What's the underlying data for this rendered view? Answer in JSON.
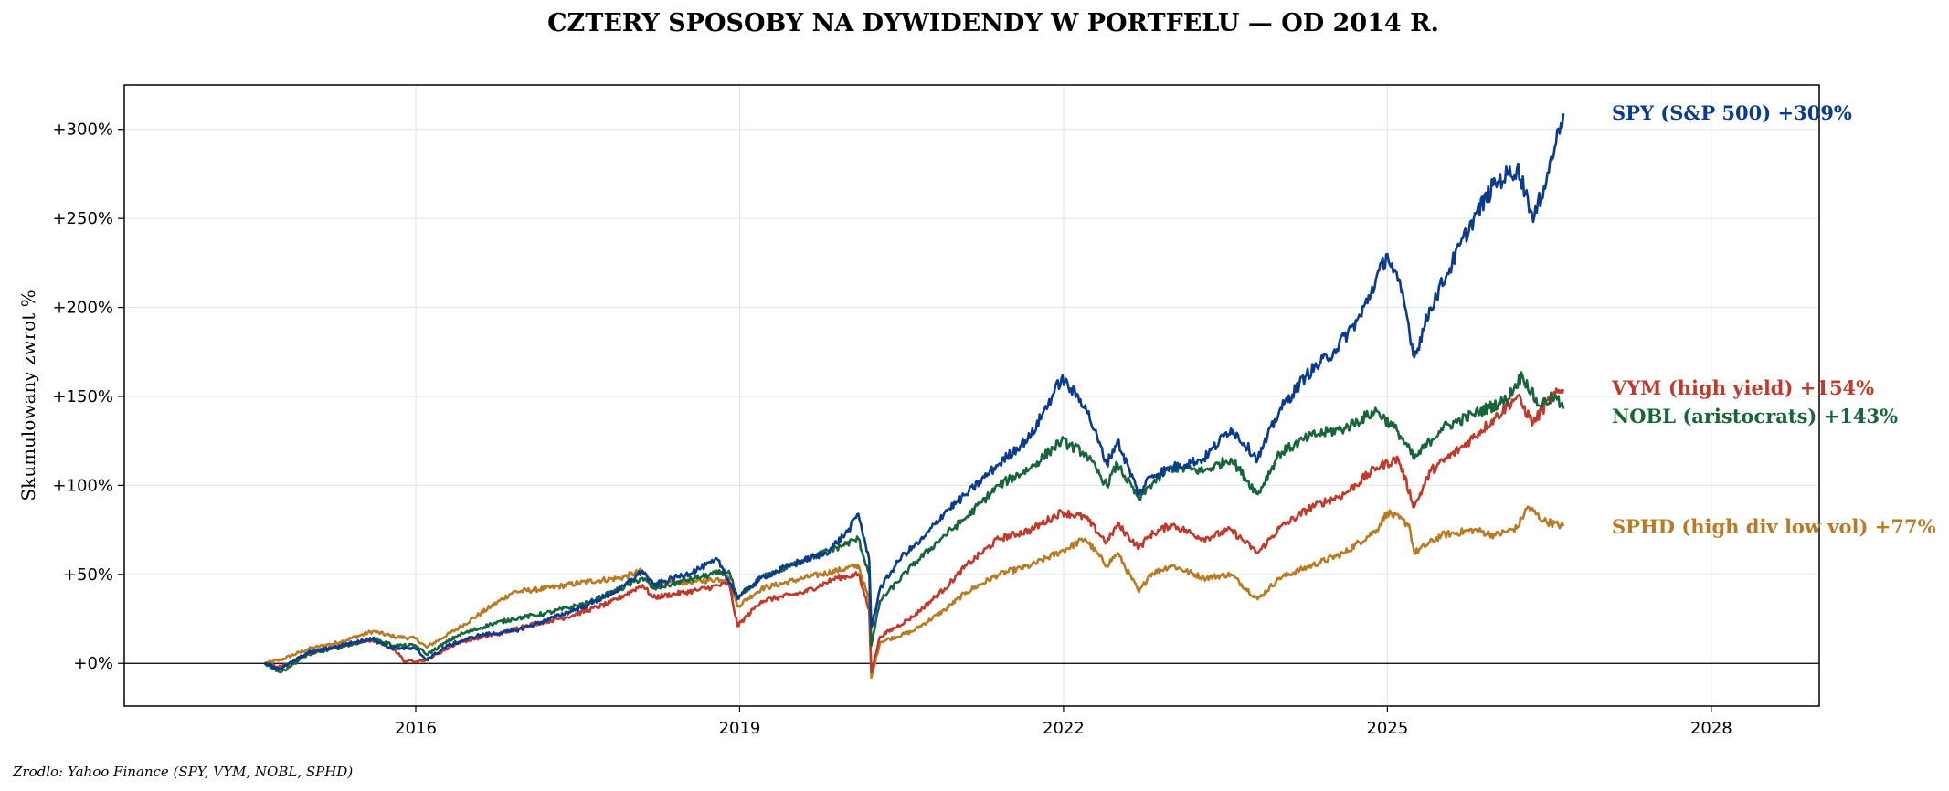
{
  "chart_data": {
    "type": "line",
    "title": "CZTERY SPOSOBY NA DYWIDENDY W PORTFELU — OD 2014 R.",
    "ylabel": "Skumulowany zwrot %",
    "xlabel": "",
    "xlim": [
      2013.3,
      2029.0
    ],
    "ylim": [
      -24,
      325
    ],
    "x_ticks": [
      2016,
      2019,
      2022,
      2025,
      2028
    ],
    "y_ticks": [
      0,
      50,
      100,
      150,
      200,
      250,
      300
    ],
    "y_tick_labels": [
      "+0%",
      "+50%",
      "+100%",
      "+150%",
      "+200%",
      "+250%",
      "+300%"
    ],
    "grid": true,
    "zero_line": true,
    "source_note": "Zrodlo: Yahoo Finance (SPY, VYM, NOBL, SPHD)",
    "series": [
      {
        "name": "SPY (S&P 500)",
        "label": "SPY (S&P 500)  +309%",
        "color": "#0b3b8f",
        "points": [
          [
            2014.6,
            0
          ],
          [
            2014.75,
            -3
          ],
          [
            2015.0,
            6
          ],
          [
            2015.3,
            10
          ],
          [
            2015.6,
            14
          ],
          [
            2015.75,
            9
          ],
          [
            2016.0,
            8
          ],
          [
            2016.1,
            2
          ],
          [
            2016.3,
            10
          ],
          [
            2016.6,
            16
          ],
          [
            2016.9,
            18
          ],
          [
            2017.2,
            24
          ],
          [
            2017.6,
            33
          ],
          [
            2017.9,
            42
          ],
          [
            2018.1,
            52
          ],
          [
            2018.2,
            44
          ],
          [
            2018.5,
            50
          ],
          [
            2018.8,
            58
          ],
          [
            2018.98,
            37
          ],
          [
            2019.2,
            48
          ],
          [
            2019.5,
            56
          ],
          [
            2019.8,
            62
          ],
          [
            2020.0,
            74
          ],
          [
            2020.1,
            84
          ],
          [
            2020.2,
            58
          ],
          [
            2020.22,
            20
          ],
          [
            2020.3,
            42
          ],
          [
            2020.5,
            60
          ],
          [
            2020.7,
            70
          ],
          [
            2020.9,
            85
          ],
          [
            2021.1,
            95
          ],
          [
            2021.4,
            112
          ],
          [
            2021.7,
            128
          ],
          [
            2021.98,
            160
          ],
          [
            2022.2,
            145
          ],
          [
            2022.4,
            112
          ],
          [
            2022.5,
            125
          ],
          [
            2022.7,
            95
          ],
          [
            2022.8,
            105
          ],
          [
            2023.0,
            110
          ],
          [
            2023.3,
            115
          ],
          [
            2023.55,
            132
          ],
          [
            2023.8,
            115
          ],
          [
            2024.0,
            142
          ],
          [
            2024.25,
            162
          ],
          [
            2024.5,
            175
          ],
          [
            2024.75,
            195
          ],
          [
            2025.0,
            230
          ],
          [
            2025.15,
            205
          ],
          [
            2025.25,
            172
          ],
          [
            2025.4,
            200
          ],
          [
            2025.6,
            225
          ],
          [
            2025.8,
            250
          ],
          [
            2026.0,
            270
          ],
          [
            2026.2,
            278
          ],
          [
            2026.3,
            262
          ],
          [
            2026.35,
            248
          ],
          [
            2026.45,
            268
          ],
          [
            2026.55,
            290
          ],
          [
            2026.63,
            309
          ]
        ]
      },
      {
        "name": "VYM (high yield)",
        "label": "VYM (high yield)  +154%",
        "color": "#c0392b",
        "points": [
          [
            2014.6,
            0
          ],
          [
            2014.75,
            -2
          ],
          [
            2015.0,
            5
          ],
          [
            2015.3,
            10
          ],
          [
            2015.6,
            13
          ],
          [
            2015.8,
            8
          ],
          [
            2015.9,
            1
          ],
          [
            2016.1,
            2
          ],
          [
            2016.4,
            12
          ],
          [
            2016.8,
            17
          ],
          [
            2017.0,
            21
          ],
          [
            2017.4,
            26
          ],
          [
            2017.8,
            34
          ],
          [
            2018.1,
            44
          ],
          [
            2018.2,
            37
          ],
          [
            2018.6,
            41
          ],
          [
            2018.9,
            45
          ],
          [
            2018.98,
            21
          ],
          [
            2019.2,
            35
          ],
          [
            2019.6,
            40
          ],
          [
            2019.9,
            48
          ],
          [
            2020.1,
            50
          ],
          [
            2020.2,
            30
          ],
          [
            2020.22,
            -5
          ],
          [
            2020.3,
            15
          ],
          [
            2020.6,
            26
          ],
          [
            2020.9,
            42
          ],
          [
            2021.1,
            55
          ],
          [
            2021.4,
            70
          ],
          [
            2021.7,
            75
          ],
          [
            2021.98,
            85
          ],
          [
            2022.2,
            82
          ],
          [
            2022.4,
            68
          ],
          [
            2022.5,
            78
          ],
          [
            2022.7,
            65
          ],
          [
            2022.8,
            72
          ],
          [
            2023.0,
            78
          ],
          [
            2023.3,
            70
          ],
          [
            2023.55,
            75
          ],
          [
            2023.8,
            62
          ],
          [
            2024.0,
            76
          ],
          [
            2024.3,
            88
          ],
          [
            2024.6,
            95
          ],
          [
            2024.9,
            110
          ],
          [
            2025.1,
            115
          ],
          [
            2025.25,
            88
          ],
          [
            2025.4,
            108
          ],
          [
            2025.7,
            122
          ],
          [
            2026.0,
            138
          ],
          [
            2026.2,
            150
          ],
          [
            2026.35,
            135
          ],
          [
            2026.5,
            148
          ],
          [
            2026.63,
            154
          ]
        ]
      },
      {
        "name": "NOBL (aristocrats)",
        "label": "NOBL (aristocrats)  +143%",
        "color": "#17663a",
        "points": [
          [
            2014.6,
            0
          ],
          [
            2014.75,
            -5
          ],
          [
            2015.0,
            5
          ],
          [
            2015.3,
            9
          ],
          [
            2015.6,
            14
          ],
          [
            2015.8,
            10
          ],
          [
            2016.0,
            10
          ],
          [
            2016.1,
            5
          ],
          [
            2016.4,
            16
          ],
          [
            2016.7,
            22
          ],
          [
            2016.9,
            25
          ],
          [
            2017.2,
            28
          ],
          [
            2017.6,
            34
          ],
          [
            2017.9,
            42
          ],
          [
            2018.1,
            48
          ],
          [
            2018.2,
            42
          ],
          [
            2018.6,
            48
          ],
          [
            2018.9,
            52
          ],
          [
            2018.98,
            36
          ],
          [
            2019.2,
            48
          ],
          [
            2019.6,
            58
          ],
          [
            2019.9,
            65
          ],
          [
            2020.1,
            70
          ],
          [
            2020.2,
            50
          ],
          [
            2020.22,
            10
          ],
          [
            2020.3,
            35
          ],
          [
            2020.6,
            55
          ],
          [
            2020.9,
            72
          ],
          [
            2021.1,
            82
          ],
          [
            2021.4,
            100
          ],
          [
            2021.7,
            110
          ],
          [
            2021.98,
            125
          ],
          [
            2022.2,
            118
          ],
          [
            2022.4,
            100
          ],
          [
            2022.5,
            112
          ],
          [
            2022.7,
            92
          ],
          [
            2022.8,
            100
          ],
          [
            2023.0,
            110
          ],
          [
            2023.3,
            108
          ],
          [
            2023.55,
            115
          ],
          [
            2023.8,
            95
          ],
          [
            2024.0,
            118
          ],
          [
            2024.3,
            128
          ],
          [
            2024.6,
            132
          ],
          [
            2024.9,
            142
          ],
          [
            2025.1,
            130
          ],
          [
            2025.25,
            115
          ],
          [
            2025.5,
            132
          ],
          [
            2025.8,
            140
          ],
          [
            2026.1,
            148
          ],
          [
            2026.25,
            162
          ],
          [
            2026.4,
            145
          ],
          [
            2026.55,
            150
          ],
          [
            2026.63,
            143
          ]
        ]
      },
      {
        "name": "SPHD (high div low vol)",
        "label": "SPHD (high div low vol)  +77%",
        "color": "#b87a22",
        "points": [
          [
            2014.6,
            0
          ],
          [
            2014.75,
            2
          ],
          [
            2015.0,
            8
          ],
          [
            2015.3,
            12
          ],
          [
            2015.6,
            18
          ],
          [
            2015.8,
            15
          ],
          [
            2016.0,
            14
          ],
          [
            2016.1,
            9
          ],
          [
            2016.4,
            20
          ],
          [
            2016.7,
            32
          ],
          [
            2016.9,
            40
          ],
          [
            2017.2,
            42
          ],
          [
            2017.6,
            46
          ],
          [
            2017.9,
            48
          ],
          [
            2018.1,
            52
          ],
          [
            2018.2,
            44
          ],
          [
            2018.6,
            46
          ],
          [
            2018.9,
            48
          ],
          [
            2018.98,
            32
          ],
          [
            2019.2,
            42
          ],
          [
            2019.6,
            48
          ],
          [
            2019.9,
            52
          ],
          [
            2020.1,
            55
          ],
          [
            2020.2,
            35
          ],
          [
            2020.22,
            -8
          ],
          [
            2020.3,
            12
          ],
          [
            2020.6,
            18
          ],
          [
            2020.9,
            30
          ],
          [
            2021.1,
            40
          ],
          [
            2021.4,
            50
          ],
          [
            2021.7,
            55
          ],
          [
            2021.98,
            63
          ],
          [
            2022.2,
            70
          ],
          [
            2022.4,
            55
          ],
          [
            2022.5,
            62
          ],
          [
            2022.7,
            40
          ],
          [
            2022.8,
            50
          ],
          [
            2023.0,
            55
          ],
          [
            2023.3,
            48
          ],
          [
            2023.55,
            50
          ],
          [
            2023.8,
            36
          ],
          [
            2024.0,
            48
          ],
          [
            2024.3,
            55
          ],
          [
            2024.6,
            62
          ],
          [
            2024.9,
            75
          ],
          [
            2025.0,
            85
          ],
          [
            2025.2,
            78
          ],
          [
            2025.25,
            62
          ],
          [
            2025.5,
            72
          ],
          [
            2025.8,
            75
          ],
          [
            2026.0,
            72
          ],
          [
            2026.2,
            76
          ],
          [
            2026.3,
            88
          ],
          [
            2026.45,
            80
          ],
          [
            2026.63,
            77
          ]
        ]
      }
    ]
  }
}
